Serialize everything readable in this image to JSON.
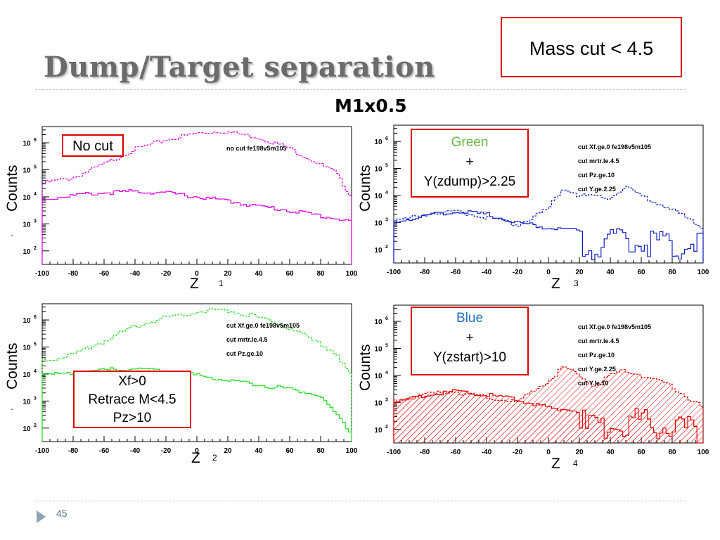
{
  "slide": {
    "title": "Dump/Target separation",
    "subtitle": "M1x0.5",
    "mass_cut": "Mass cut < 4.5",
    "page_number": "45"
  },
  "colors": {
    "magenta": "#e000e0",
    "green": "#22dd22",
    "blue": "#1020c8",
    "red": "#e00000",
    "callout_border": "#e00000",
    "green_text": "#66bb44",
    "blue_text": "#1a6fbf"
  },
  "chart_data": [
    {
      "type": "line",
      "panel": "1",
      "xlabel": "Z",
      "ylabel": "Counts",
      "x_ticks": [
        "-100",
        "-80",
        "-60",
        "-40",
        "-20",
        "0",
        "20",
        "40",
        "60",
        "80",
        "100"
      ],
      "y_ticks": [
        "10",
        "10",
        "10",
        "10",
        "10"
      ],
      "y_exp": [
        "2",
        "3",
        "4",
        "5",
        "6"
      ],
      "xlim": [
        -100,
        100
      ],
      "ylim_log10": [
        1.5,
        6.6
      ],
      "yscale": "log",
      "annotations": [
        "no cut fe198v5m105"
      ],
      "callout": {
        "lines": [
          "No cut"
        ]
      },
      "series": [
        {
          "style": "dashed",
          "color": "#e000e0",
          "x": [
            -100,
            -80,
            -60,
            -40,
            -20,
            0,
            15,
            20,
            40,
            60,
            80,
            90,
            100
          ],
          "log10_y": [
            4.5,
            4.7,
            5.2,
            5.75,
            6.1,
            6.35,
            6.42,
            6.4,
            6.2,
            5.8,
            5.2,
            4.9,
            4.0
          ]
        },
        {
          "style": "solid",
          "color": "#e000e0",
          "x": [
            -100,
            -80,
            -60,
            -40,
            -20,
            0,
            20,
            40,
            60,
            80,
            100
          ],
          "log10_y": [
            3.9,
            4.05,
            4.15,
            4.2,
            4.15,
            4.0,
            3.85,
            3.65,
            3.5,
            3.3,
            3.1
          ]
        }
      ]
    },
    {
      "type": "line",
      "panel": "2",
      "xlabel": "Z",
      "ylabel": "Counts",
      "x_ticks": [
        "-100",
        "-80",
        "-60",
        "-40",
        "-20",
        "0",
        "20",
        "40",
        "60",
        "80",
        "100"
      ],
      "y_ticks": [
        "10",
        "10",
        "10",
        "10",
        "10"
      ],
      "y_exp": [
        "2",
        "3",
        "4",
        "5",
        "6"
      ],
      "xlim": [
        -100,
        100
      ],
      "ylim_log10": [
        1.5,
        6.6
      ],
      "yscale": "log",
      "annotations": [
        "cut Xf.ge.0 fe198v5m105",
        "cut mrtr.le.4.5",
        "cut Pz.ge.10"
      ],
      "callout": {
        "lines": [
          "Xf>0",
          "Retrace M<4.5",
          "Pz>10"
        ]
      },
      "series": [
        {
          "style": "dashed",
          "color": "#22dd22",
          "x": [
            -100,
            -80,
            -60,
            -40,
            -20,
            0,
            15,
            20,
            40,
            60,
            80,
            90,
            100
          ],
          "log10_y": [
            4.5,
            4.7,
            5.2,
            5.75,
            6.1,
            6.3,
            6.38,
            6.35,
            6.1,
            5.7,
            5.1,
            4.8,
            3.9
          ]
        },
        {
          "style": "solid",
          "color": "#22dd22",
          "x": [
            -100,
            -80,
            -60,
            -40,
            -20,
            0,
            20,
            40,
            60,
            80,
            100
          ],
          "log10_y": [
            3.95,
            4.05,
            4.15,
            4.2,
            4.1,
            3.95,
            3.8,
            3.6,
            3.45,
            3.2,
            1.8
          ]
        }
      ]
    },
    {
      "type": "line",
      "panel": "3",
      "xlabel": "Z",
      "ylabel": "Counts",
      "x_ticks": [
        "-100",
        "-80",
        "-60",
        "-40",
        "-20",
        "0",
        "20",
        "40",
        "60",
        "80",
        "100"
      ],
      "y_ticks": [
        "10",
        "10",
        "10",
        "10",
        "10"
      ],
      "y_exp": [
        "2",
        "3",
        "4",
        "5",
        "6"
      ],
      "xlim": [
        -100,
        100
      ],
      "ylim_log10": [
        1.5,
        6.6
      ],
      "yscale": "log",
      "annotations": [
        "cut Xf.ge.0 fe198v5m105",
        "cut mrtr.le.4.5",
        "cut Pz.ge.10",
        "cut Y.ge.2.25"
      ],
      "callout": {
        "line1": "Green",
        "line2": "+",
        "line3": "Y(zdump)>2.25"
      },
      "series": [
        {
          "style": "dashed",
          "color": "#1020c8",
          "x": [
            -100,
            -80,
            -60,
            -40,
            -20,
            0,
            10,
            20,
            40,
            50,
            60,
            80,
            100
          ],
          "log10_y": [
            3.0,
            3.3,
            3.4,
            3.2,
            2.9,
            3.5,
            4.3,
            4.0,
            3.9,
            4.3,
            4.0,
            3.5,
            2.8
          ]
        },
        {
          "style": "solid",
          "color": "#1020c8",
          "x": [
            -100,
            -80,
            -60,
            -40,
            -20,
            0,
            20,
            25,
            40,
            60,
            80,
            100
          ],
          "log10_y": [
            3.0,
            3.25,
            3.4,
            3.3,
            3.0,
            2.8,
            2.7,
            2.0,
            2.3,
            2.2,
            2.1,
            2.3
          ]
        }
      ]
    },
    {
      "type": "area",
      "panel": "4",
      "xlabel": "Z",
      "ylabel": "Counts",
      "x_ticks": [
        "-100",
        "-80",
        "-60",
        "-40",
        "-20",
        "0",
        "20",
        "40",
        "60",
        "80",
        "100"
      ],
      "y_ticks": [
        "10",
        "10",
        "10",
        "10",
        "10"
      ],
      "y_exp": [
        "2",
        "3",
        "4",
        "5",
        "6"
      ],
      "xlim": [
        -100,
        100
      ],
      "ylim_log10": [
        1.5,
        6.6
      ],
      "yscale": "log",
      "annotations": [
        "cut Xf.ge.0 fe198v5m105",
        "cut mrtr.le.4.5",
        "cut Pz.ge.10",
        "cut Y.ge.2.25",
        "cut Y.le.10"
      ],
      "callout": {
        "line1": "Blue",
        "line2": "+",
        "line3": "Y(zstart)>10"
      },
      "series": [
        {
          "style": "dashed-hatched",
          "color": "#e00000",
          "x": [
            -100,
            -80,
            -60,
            -40,
            -20,
            0,
            10,
            20,
            30,
            40,
            50,
            60,
            80,
            100
          ],
          "log10_y": [
            3.0,
            3.3,
            3.4,
            3.2,
            3.0,
            3.8,
            4.3,
            4.0,
            3.6,
            4.0,
            4.2,
            4.0,
            3.6,
            2.8
          ]
        },
        {
          "style": "solid-hatched",
          "color": "#e00000",
          "x": [
            -100,
            -80,
            -60,
            -40,
            -20,
            0,
            20,
            25,
            40,
            60,
            80,
            100
          ],
          "log10_y": [
            3.0,
            3.25,
            3.4,
            3.3,
            3.1,
            2.8,
            2.7,
            2.0,
            2.3,
            2.2,
            2.1,
            1.8
          ]
        }
      ]
    }
  ]
}
